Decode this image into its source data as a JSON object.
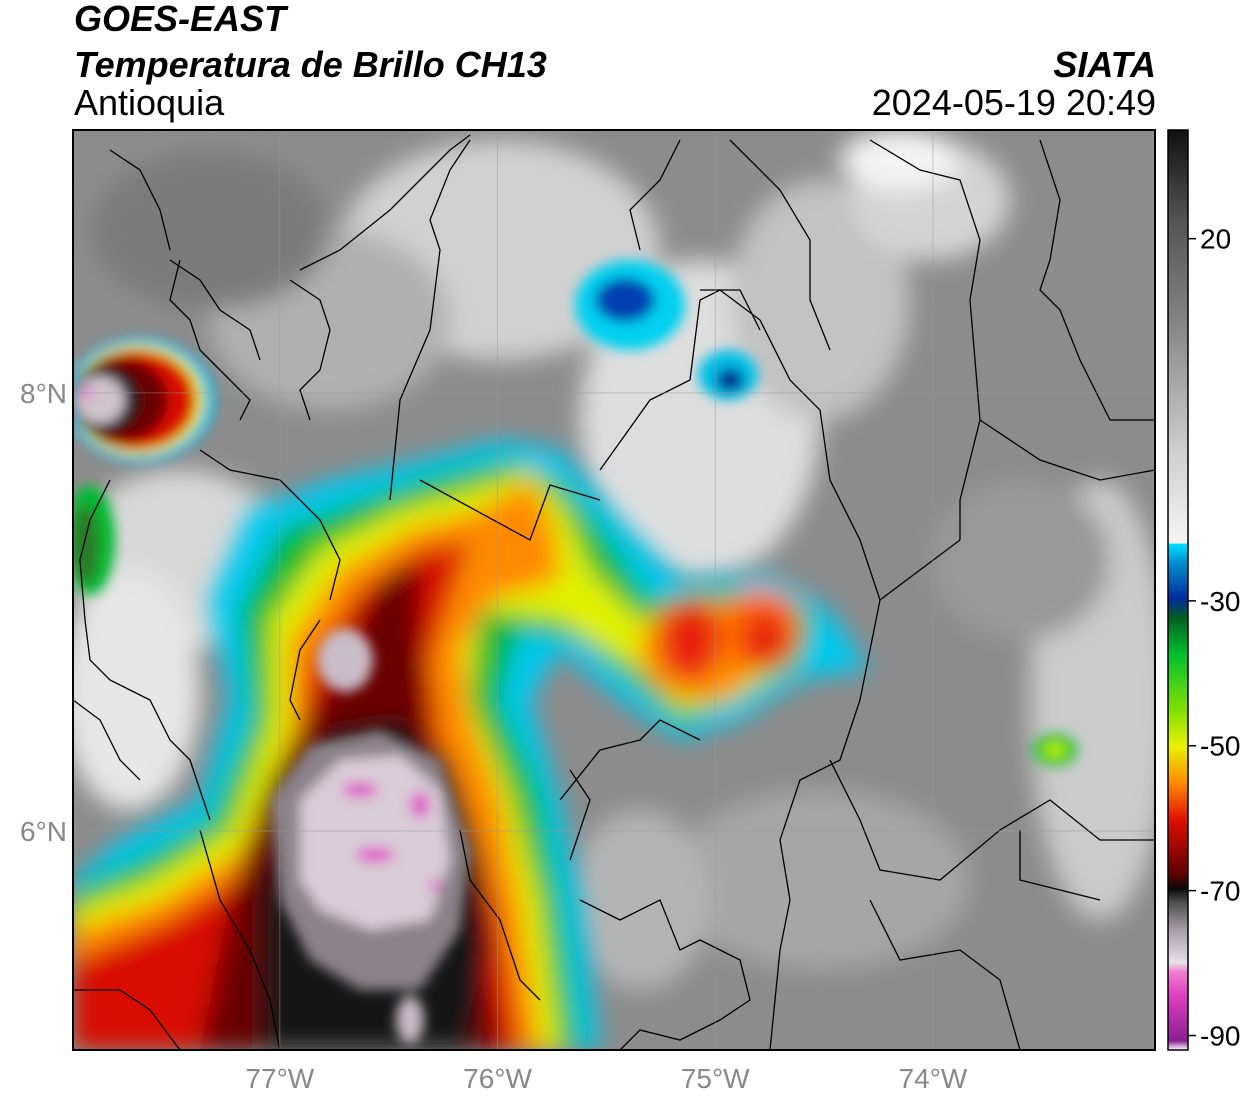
{
  "header": {
    "satellite": "GOES-EAST",
    "product": "Temperatura de Brillo CH13",
    "region": "Antioquia",
    "brand": "SIATA",
    "datetime": "2024-05-19 20:49"
  },
  "axes": {
    "lon_ticks": [
      {
        "value": -77,
        "label": "77°W"
      },
      {
        "value": -76,
        "label": "76°W"
      },
      {
        "value": -75,
        "label": "75°W"
      },
      {
        "value": -74,
        "label": "74°W"
      }
    ],
    "lat_ticks": [
      {
        "value": 8,
        "label": "8°N"
      },
      {
        "value": 6,
        "label": "6°N"
      }
    ],
    "lon_range": [
      -77.95,
      -72.98
    ],
    "lat_range": [
      5.0,
      9.2
    ]
  },
  "colorbar": {
    "ticks": [
      {
        "value": 20,
        "label": "20"
      },
      {
        "value": -30,
        "label": "-30"
      },
      {
        "value": -50,
        "label": "-50"
      },
      {
        "value": -70,
        "label": "-70"
      },
      {
        "value": -90,
        "label": "-90"
      }
    ],
    "range": [
      -92,
      35
    ],
    "colors": {
      "warm_black": "#111111",
      "warm_grey": "#7a7a7a",
      "white": "#f4f4f4",
      "cyan": "#00e0ff",
      "blue": "#002a9a",
      "green": "#00c030",
      "yellow": "#e8f000",
      "orange": "#ff8a00",
      "red": "#e01000",
      "dark_red": "#5a0000",
      "black": "#0a0a0a",
      "light_grey": "#e8e0e8",
      "magenta": "#e040c0",
      "purple": "#8a2090"
    }
  }
}
